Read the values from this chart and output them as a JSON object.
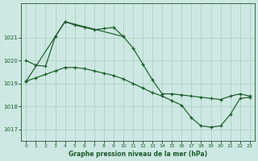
{
  "title": "Graphe pression niveau de la mer (hPa)",
  "background_color": "#cde8e2",
  "grid_color": "#a8ccbf",
  "line_color": "#1a5c2a",
  "xlim": [
    -0.5,
    23.5
  ],
  "ylim": [
    1016.5,
    1022.5
  ],
  "yticks": [
    1017,
    1018,
    1019,
    1020,
    1021
  ],
  "xticks": [
    0,
    1,
    2,
    3,
    4,
    5,
    6,
    7,
    8,
    9,
    10,
    11,
    12,
    13,
    14,
    15,
    16,
    17,
    18,
    19,
    20,
    21,
    22,
    23
  ],
  "line1_x": [
    0,
    3,
    4,
    5,
    6,
    7,
    8,
    9,
    10
  ],
  "line1_y": [
    1019.1,
    1021.05,
    1021.7,
    1021.55,
    1021.45,
    1021.35,
    1021.4,
    1021.45,
    1021.05
  ],
  "line2_x": [
    0,
    1,
    2,
    3,
    4,
    10,
    11,
    12,
    13,
    14,
    15,
    16,
    17,
    18,
    19,
    20,
    21,
    22,
    23
  ],
  "line2_y": [
    1020.0,
    1019.8,
    1019.75,
    1021.05,
    1021.7,
    1021.05,
    1020.55,
    1019.85,
    1019.15,
    1018.55,
    1018.55,
    1018.5,
    1018.45,
    1018.4,
    1018.35,
    1018.3,
    1018.45,
    1018.55,
    1018.45
  ],
  "line3_x": [
    0,
    1,
    2,
    3,
    4,
    5,
    6,
    7,
    8,
    9,
    10,
    11,
    12,
    13,
    14,
    15,
    16,
    17,
    18,
    19,
    20,
    21,
    22,
    23
  ],
  "line3_y": [
    1019.1,
    1019.25,
    1019.4,
    1019.55,
    1019.7,
    1019.7,
    1019.65,
    1019.55,
    1019.45,
    1019.35,
    1019.2,
    1019.0,
    1018.8,
    1018.6,
    1018.45,
    1018.25,
    1018.05,
    1017.5,
    1017.15,
    1017.1,
    1017.15,
    1017.65,
    1018.35,
    1018.4
  ]
}
